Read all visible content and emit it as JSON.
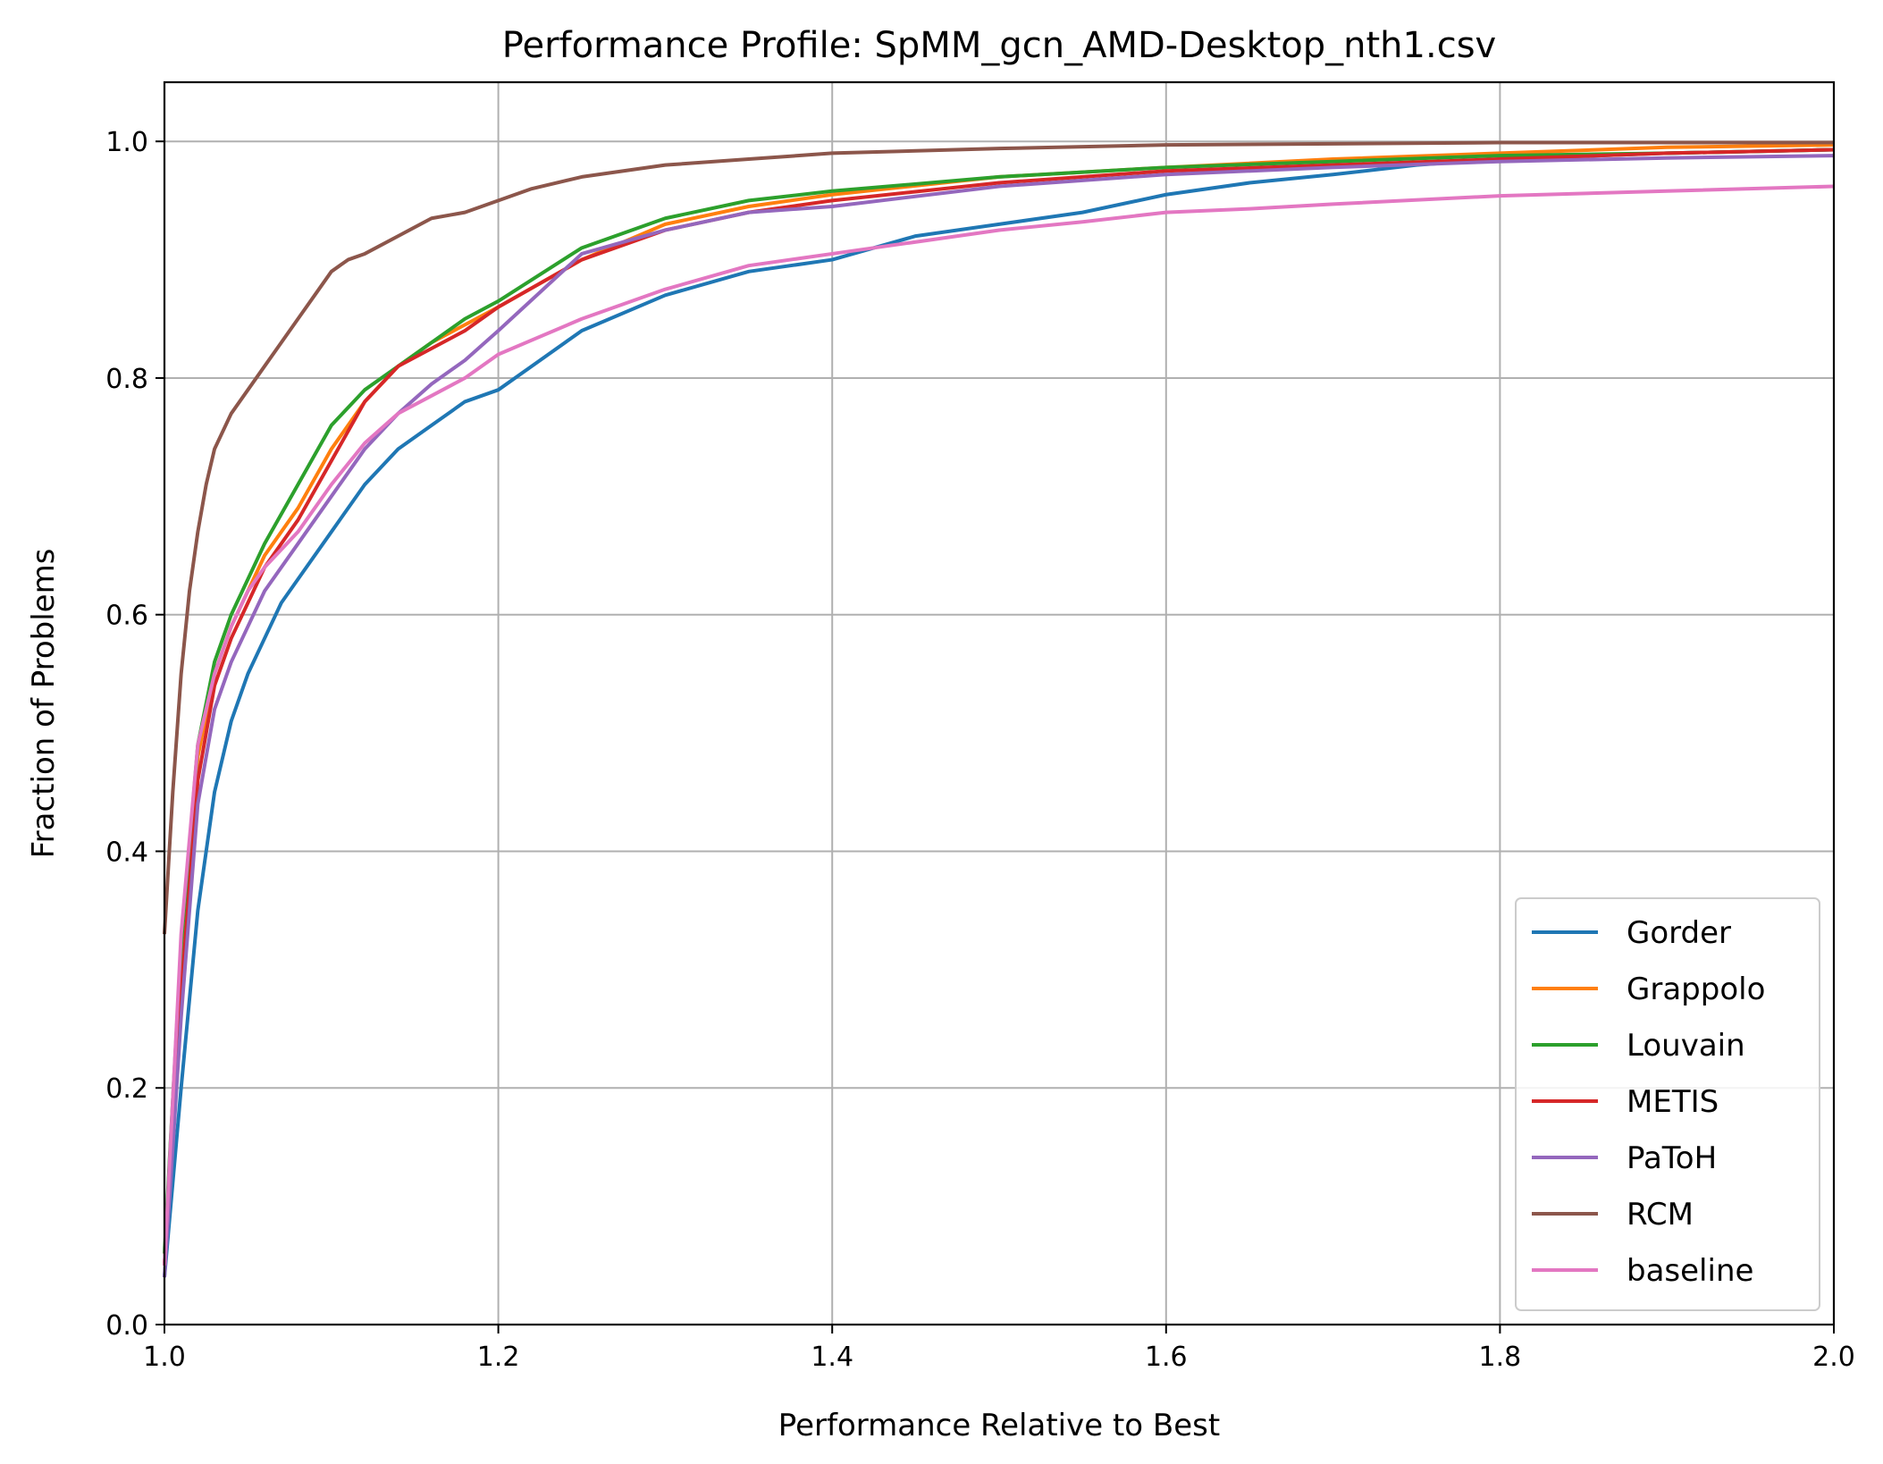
{
  "chart_data": {
    "type": "line",
    "title": "Performance Profile: SpMM_gcn_AMD-Desktop_nth1.csv",
    "xlabel": "Performance Relative to Best",
    "ylabel": "Fraction of Problems",
    "xlim": [
      1.0,
      2.0
    ],
    "ylim": [
      0.0,
      1.05
    ],
    "xticks": [
      1.0,
      1.2,
      1.4,
      1.6,
      1.8,
      2.0
    ],
    "xtick_labels": [
      "1.0",
      "1.2",
      "1.4",
      "1.6",
      "1.8",
      "2.0"
    ],
    "yticks": [
      0.0,
      0.2,
      0.4,
      0.6,
      0.8,
      1.0
    ],
    "ytick_labels": [
      "0.0",
      "0.2",
      "0.4",
      "0.6",
      "0.8",
      "1.0"
    ],
    "grid": true,
    "legend_position": "lower-right",
    "series": [
      {
        "name": "Gorder",
        "color": "#1f77b4",
        "x": [
          1.0,
          1.01,
          1.02,
          1.03,
          1.04,
          1.05,
          1.06,
          1.07,
          1.08,
          1.1,
          1.12,
          1.14,
          1.16,
          1.18,
          1.2,
          1.22,
          1.25,
          1.3,
          1.35,
          1.4,
          1.45,
          1.5,
          1.55,
          1.6,
          1.65,
          1.7,
          1.75,
          1.8,
          1.9,
          2.0
        ],
        "y": [
          0.04,
          0.2,
          0.35,
          0.45,
          0.51,
          0.55,
          0.58,
          0.61,
          0.63,
          0.67,
          0.71,
          0.74,
          0.76,
          0.78,
          0.79,
          0.81,
          0.84,
          0.87,
          0.89,
          0.9,
          0.92,
          0.93,
          0.94,
          0.955,
          0.965,
          0.972,
          0.98,
          0.985,
          0.99,
          0.993
        ]
      },
      {
        "name": "Grappolo",
        "color": "#ff7f0e",
        "x": [
          1.0,
          1.01,
          1.02,
          1.03,
          1.04,
          1.05,
          1.06,
          1.08,
          1.1,
          1.12,
          1.14,
          1.16,
          1.18,
          1.2,
          1.25,
          1.3,
          1.35,
          1.4,
          1.5,
          1.6,
          1.7,
          1.8,
          1.9,
          2.0
        ],
        "y": [
          0.05,
          0.3,
          0.48,
          0.55,
          0.59,
          0.62,
          0.65,
          0.69,
          0.74,
          0.78,
          0.81,
          0.83,
          0.845,
          0.86,
          0.9,
          0.93,
          0.945,
          0.955,
          0.97,
          0.978,
          0.985,
          0.99,
          0.995,
          0.997
        ]
      },
      {
        "name": "Louvain",
        "color": "#2ca02c",
        "x": [
          1.0,
          1.01,
          1.02,
          1.03,
          1.04,
          1.05,
          1.06,
          1.08,
          1.1,
          1.12,
          1.14,
          1.16,
          1.18,
          1.2,
          1.25,
          1.3,
          1.35,
          1.4,
          1.5,
          1.6,
          1.7,
          1.8,
          1.9,
          2.0
        ],
        "y": [
          0.06,
          0.32,
          0.49,
          0.56,
          0.6,
          0.63,
          0.66,
          0.71,
          0.76,
          0.79,
          0.81,
          0.83,
          0.85,
          0.865,
          0.91,
          0.935,
          0.95,
          0.958,
          0.97,
          0.978,
          0.983,
          0.988,
          0.99,
          0.993
        ]
      },
      {
        "name": "METIS",
        "color": "#d62728",
        "x": [
          1.0,
          1.01,
          1.02,
          1.03,
          1.04,
          1.05,
          1.06,
          1.08,
          1.1,
          1.12,
          1.14,
          1.16,
          1.18,
          1.2,
          1.25,
          1.3,
          1.35,
          1.4,
          1.5,
          1.6,
          1.7,
          1.8,
          1.9,
          2.0
        ],
        "y": [
          0.05,
          0.28,
          0.46,
          0.54,
          0.58,
          0.61,
          0.64,
          0.68,
          0.73,
          0.78,
          0.81,
          0.825,
          0.84,
          0.86,
          0.9,
          0.925,
          0.94,
          0.95,
          0.965,
          0.975,
          0.98,
          0.985,
          0.99,
          0.993
        ]
      },
      {
        "name": "PaToH",
        "color": "#9467bd",
        "x": [
          1.0,
          1.01,
          1.02,
          1.03,
          1.04,
          1.05,
          1.06,
          1.08,
          1.1,
          1.12,
          1.14,
          1.16,
          1.18,
          1.2,
          1.25,
          1.3,
          1.35,
          1.4,
          1.5,
          1.6,
          1.7,
          1.8,
          1.9,
          2.0
        ],
        "y": [
          0.04,
          0.26,
          0.44,
          0.52,
          0.56,
          0.59,
          0.62,
          0.66,
          0.7,
          0.74,
          0.77,
          0.795,
          0.815,
          0.84,
          0.905,
          0.925,
          0.94,
          0.945,
          0.962,
          0.972,
          0.978,
          0.983,
          0.986,
          0.988
        ]
      },
      {
        "name": "RCM",
        "color": "#8c564b",
        "x": [
          1.0,
          1.005,
          1.01,
          1.015,
          1.02,
          1.025,
          1.03,
          1.04,
          1.05,
          1.06,
          1.07,
          1.08,
          1.09,
          1.1,
          1.11,
          1.12,
          1.14,
          1.16,
          1.18,
          1.2,
          1.22,
          1.25,
          1.3,
          1.35,
          1.4,
          1.5,
          1.6,
          1.7,
          1.8,
          1.9,
          2.0
        ],
        "y": [
          0.33,
          0.45,
          0.55,
          0.62,
          0.67,
          0.71,
          0.74,
          0.77,
          0.79,
          0.81,
          0.83,
          0.85,
          0.87,
          0.89,
          0.9,
          0.905,
          0.92,
          0.935,
          0.94,
          0.95,
          0.96,
          0.97,
          0.98,
          0.985,
          0.99,
          0.994,
          0.997,
          0.998,
          0.999,
          0.999,
          0.999
        ]
      },
      {
        "name": "baseline",
        "color": "#e377c2",
        "x": [
          1.0,
          1.01,
          1.02,
          1.03,
          1.04,
          1.05,
          1.06,
          1.08,
          1.1,
          1.12,
          1.14,
          1.16,
          1.18,
          1.2,
          1.25,
          1.3,
          1.35,
          1.4,
          1.45,
          1.5,
          1.55,
          1.6,
          1.65,
          1.7,
          1.8,
          1.9,
          2.0
        ],
        "y": [
          0.05,
          0.33,
          0.49,
          0.55,
          0.59,
          0.62,
          0.64,
          0.67,
          0.71,
          0.745,
          0.77,
          0.785,
          0.8,
          0.82,
          0.85,
          0.875,
          0.895,
          0.905,
          0.915,
          0.925,
          0.932,
          0.94,
          0.943,
          0.947,
          0.954,
          0.958,
          0.962
        ]
      }
    ]
  }
}
